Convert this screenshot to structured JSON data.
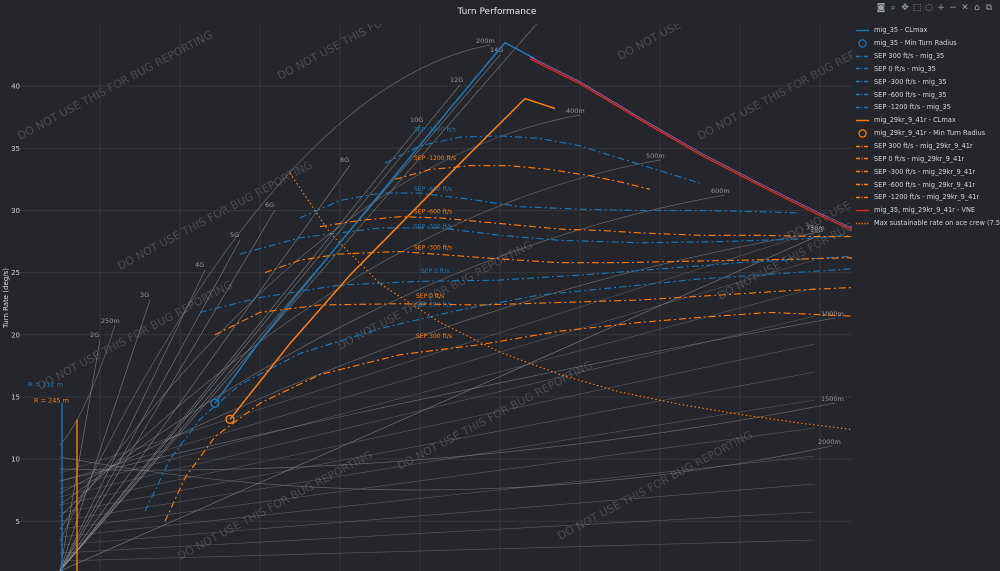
{
  "modebar": {
    "buttons": [
      {
        "name": "camera-icon",
        "glyph": "◙"
      },
      {
        "name": "zoom-icon",
        "glyph": "⌕"
      },
      {
        "name": "pan-icon",
        "glyph": "✥"
      },
      {
        "name": "box-select-icon",
        "glyph": "⬚"
      },
      {
        "name": "lasso-icon",
        "glyph": "◌"
      },
      {
        "name": "zoom-in-icon",
        "glyph": "+"
      },
      {
        "name": "zoom-out-icon",
        "glyph": "−"
      },
      {
        "name": "autoscale-icon",
        "glyph": "✕"
      },
      {
        "name": "reset-axes-icon",
        "glyph": "⌂"
      },
      {
        "name": "plotly-logo-icon",
        "glyph": "⧉"
      }
    ]
  },
  "colors": {
    "background": "#24262b",
    "grid": "#33363b",
    "mig35": "#1f77b4",
    "mig29": "#ff7f0e",
    "vne": "#d62728",
    "radial": "#9a9a9a",
    "watermark": "#4a4c52"
  },
  "watermark": "DO NOT USE THIS FOR BUG REPORTING",
  "chart_data": {
    "type": "line",
    "title": "Turn Performance",
    "ylabel": "Turn Rate (deg/s)",
    "xlabel": "",
    "ylim": [
      1,
      45
    ],
    "xlim": [
      0,
      1000
    ],
    "y_ticks": [
      5,
      10,
      15,
      20,
      25,
      30,
      35,
      40
    ],
    "grid": true,
    "legend_position": "right",
    "g_lines": {
      "labels": [
        "2G",
        "3G",
        "4G",
        "5G",
        "6G",
        "8G",
        "10G",
        "12G",
        "14G",
        "16G",
        "18G"
      ],
      "g_values": [
        2,
        3,
        4,
        5,
        6,
        8,
        10,
        12,
        14,
        16,
        18
      ]
    },
    "radius_lines": {
      "labels": [
        "200m",
        "400m",
        "500m",
        "600m",
        "750m",
        "1000m",
        "1500m",
        "2000m",
        "250m"
      ],
      "radii": [
        200,
        400,
        500,
        600,
        750,
        1000,
        1500,
        2000,
        250
      ]
    },
    "annotations": {
      "mig35_radius": "R = 212 m",
      "mig29_radius": "R = 245 m"
    },
    "series": [
      {
        "name": "mig_35 - CLmax",
        "color": "#1f77b4",
        "dash": "solid",
        "x": [
          215,
          260,
          300,
          350,
          400,
          450,
          505,
          535
        ],
        "y": [
          14.5,
          19.5,
          23.5,
          28.4,
          33.3,
          38.2,
          43.5,
          42.2
        ]
      },
      {
        "name": "mig_35 - Min Turn Radius",
        "color": "#1f77b4",
        "marker": "circle",
        "x": [
          215
        ],
        "y": [
          14.5
        ]
      },
      {
        "name": "SEP 300 ft/s - mig_35",
        "color": "#1f77b4",
        "dash": "dashdot",
        "x": [
          145,
          170,
          200,
          240,
          300,
          380,
          460,
          540,
          640,
          700,
          850,
          880,
          905,
          925
        ],
        "y": [
          5.8,
          10,
          13.2,
          16,
          18.5,
          20.5,
          22,
          23.2,
          24,
          24.5,
          25.3,
          23.5,
          20,
          10.8
        ],
        "label": "SEP 300 ft/s",
        "label_x": 500,
        "label_y": 22.1
      },
      {
        "name": "SEP 0 ft/s - mig_35",
        "color": "#1f77b4",
        "dash": "dashdot",
        "x": [
          200,
          260,
          340,
          420,
          500,
          580,
          660,
          740,
          850,
          880,
          910,
          935,
          955,
          970
        ],
        "y": [
          21.8,
          23,
          24,
          24.3,
          24.4,
          24.8,
          25.3,
          25.8,
          26.3,
          25,
          21.5,
          17.5,
          14,
          12.2
        ],
        "label": "SEP 0 ft/s",
        "label_x": 505,
        "label_y": 24.8
      },
      {
        "name": "SEP -300 ft/s - mig_35",
        "color": "#1f77b4",
        "dash": "dashdot",
        "x": [
          240,
          300,
          380,
          440,
          500,
          560,
          640,
          720,
          800,
          850,
          890,
          920,
          945,
          960,
          975
        ],
        "y": [
          26.5,
          27.8,
          28.6,
          28.6,
          28,
          27.6,
          27.4,
          27.5,
          27.7,
          28,
          26.5,
          22.5,
          18.5,
          16,
          14.8
        ],
        "label": "SEP -300 ft/s",
        "label_x": 498,
        "label_y": 28.4
      },
      {
        "name": "SEP -600 ft/s - mig_35",
        "color": "#1f77b4",
        "dash": "dashdot",
        "x": [
          300,
          340,
          380,
          420,
          470,
          520,
          580,
          640,
          700,
          760,
          800
        ],
        "y": [
          29.4,
          30.8,
          31.4,
          31.4,
          30.9,
          30.3,
          30.1,
          30,
          30,
          29.9,
          29.8
        ],
        "label": "SEP -600 ft/s",
        "label_x": 498,
        "label_y": 31.4
      },
      {
        "name": "SEP -1200 ft/s - mig_35",
        "color": "#1f77b4",
        "dash": "dashdot",
        "x": [
          385,
          420,
          460,
          500,
          540,
          580,
          620,
          660,
          700
        ],
        "y": [
          33.8,
          35.2,
          35.9,
          36,
          35.8,
          35.2,
          34.2,
          33.2,
          32.2
        ],
        "label": "SEP -1200 ft/s",
        "label_x": 498,
        "label_y": 36.2
      },
      {
        "name": "mig_29kr_9_41r - CLmax",
        "color": "#ff7f0e",
        "dash": "solid",
        "x": [
          230,
          290,
          350,
          410,
          470,
          525,
          555
        ],
        "y": [
          13.2,
          19.3,
          24.8,
          29.7,
          34.6,
          39,
          38.2
        ]
      },
      {
        "name": "mig_29kr_9_41r - Min Turn Radius",
        "color": "#ff7f0e",
        "marker": "circle",
        "x": [
          230
        ],
        "y": [
          13.2
        ]
      },
      {
        "name": "SEP 300 ft/s - mig_29kr_9_41r",
        "color": "#ff7f0e",
        "dash": "dashdot",
        "x": [
          165,
          185,
          215,
          260,
          320,
          400,
          480,
          560,
          640,
          700,
          770,
          850,
          880,
          910,
          930
        ],
        "y": [
          5,
          8.5,
          11.8,
          14.5,
          16.8,
          18.4,
          19.2,
          20.3,
          21,
          21.4,
          21.8,
          21.5,
          18.5,
          13.5,
          9.2
        ],
        "label": "SEP 300 ft/s",
        "label_x": 500,
        "label_y": 19.6
      },
      {
        "name": "SEP 0 ft/s - mig_29kr_9_41r",
        "color": "#ff7f0e",
        "dash": "dashdot",
        "x": [
          215,
          260,
          320,
          400,
          480,
          560,
          640,
          720,
          800,
          850,
          880,
          910,
          935,
          955,
          970
        ],
        "y": [
          20,
          21.8,
          22.4,
          22.5,
          22.4,
          22.6,
          22.8,
          23.2,
          23.6,
          23.8,
          22,
          19,
          16,
          13.8,
          12.8
        ],
        "label": "SEP 0 ft/s",
        "label_x": 500,
        "label_y": 22.8
      },
      {
        "name": "SEP -300 ft/s - mig_29kr_9_41r",
        "color": "#ff7f0e",
        "dash": "dashdot",
        "x": [
          265,
          300,
          340,
          400,
          450,
          500,
          560,
          620,
          680,
          740,
          800,
          850,
          890,
          915,
          940,
          955,
          970
        ],
        "y": [
          25,
          26,
          26.5,
          26.7,
          26.4,
          26.1,
          25.8,
          25.8,
          25.9,
          26,
          26.1,
          26.2,
          24.8,
          22,
          19.2,
          17,
          15.5
        ],
        "label": "SEP -300 ft/s",
        "label_x": 498,
        "label_y": 26.7
      },
      {
        "name": "SEP -600 ft/s - mig_29kr_9_41r",
        "color": "#ff7f0e",
        "dash": "dashdot",
        "x": [
          320,
          360,
          400,
          440,
          480,
          520,
          560,
          600,
          640,
          700,
          760,
          820,
          850,
          880
        ],
        "y": [
          28.7,
          29.2,
          29.5,
          29.4,
          29.1,
          28.8,
          28.5,
          28.4,
          28.2,
          28,
          28,
          27.9,
          27.9,
          27.5
        ],
        "label": "SEP -600 ft/s",
        "label_x": 498,
        "label_y": 29.6
      },
      {
        "name": "SEP -1200 ft/s - mig_29kr_9_41r",
        "color": "#ff7f0e",
        "dash": "dashdot",
        "x": [
          395,
          430,
          470,
          510,
          550,
          590,
          620,
          650
        ],
        "y": [
          32.5,
          33.3,
          33.6,
          33.6,
          33.3,
          32.8,
          32.3,
          31.7
        ],
        "label": "SEP -1200 ft/s",
        "label_x": 498,
        "label_y": 33.9
      },
      {
        "name": "mig_35, mig_29kr_9_41r - VNE",
        "color": "#d62728",
        "dash": "solid",
        "x": [
          530,
          580,
          640,
          700,
          760,
          820,
          850,
          880,
          905,
          925
        ],
        "y": [
          42.2,
          40.2,
          37.3,
          34.5,
          32,
          29.6,
          28.5,
          27.5,
          26.7,
          25.9
        ]
      },
      {
        "name": "Max sustainable rate on ace crew (7.5G)",
        "color": "#ff7f0e",
        "dash": "dot",
        "x": [
          290,
          330,
          380,
          440,
          500,
          560,
          620,
          680,
          740,
          800,
          860,
          920
        ],
        "y": [
          33,
          28.2,
          24.1,
          21,
          18.6,
          16.8,
          15.4,
          14.4,
          13.6,
          12.9,
          12.3,
          11.7
        ]
      }
    ]
  }
}
